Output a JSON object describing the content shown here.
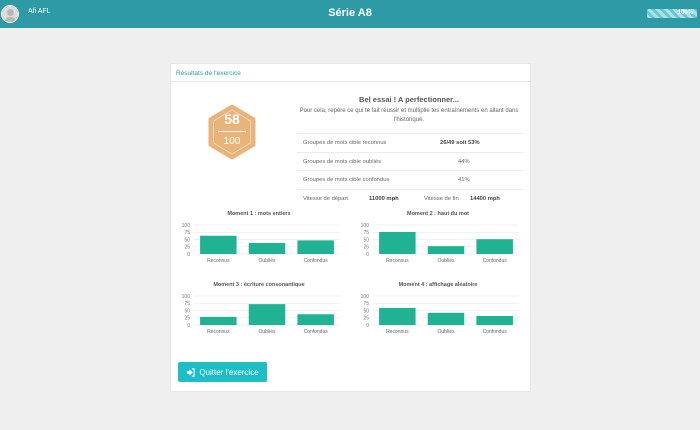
{
  "header": {
    "username": "Afi AFL",
    "title": "Série A8",
    "progress_text": "100%",
    "progress_value": 100
  },
  "card": {
    "title": "Résultats de l'exercice",
    "score": "58",
    "score_max": "100",
    "headline": "Bel essai ! A perfectionner...",
    "intro": "Pour cela, repère ce qui te fait réussir et multiplie tes entraînements en allant dans l'historique.",
    "stats": [
      {
        "label": "Groupes de mots cible reconnus",
        "value": "26/49 soit 53%"
      },
      {
        "label": "Groupes de mots cible oubliés",
        "value": "44%"
      },
      {
        "label": "Groupes de mots cible confondus",
        "value": "41%"
      }
    ],
    "speed": {
      "start_label": "Vitesse de départ",
      "start_value": "11000 mph",
      "end_label": "Vitesse de fin",
      "end_value": "14400 mph"
    },
    "quit_label": "Quitter l'exercice"
  },
  "colors": {
    "header": "#2d9aa5",
    "accent": "#1ebec7",
    "bar": "#1fb394",
    "badge": "#e8b47a"
  },
  "chart_data": [
    {
      "type": "bar",
      "title": "Moment 1 : mots entiers",
      "categories": [
        "Reconnus",
        "Oubliés",
        "Confondus"
      ],
      "values": [
        63,
        38,
        47
      ],
      "yticks": [
        0,
        25,
        50,
        75,
        100
      ],
      "ylim": [
        0,
        100
      ]
    },
    {
      "type": "bar",
      "title": "Moment 2 : haut du mot",
      "categories": [
        "Reconnus",
        "Oubliés",
        "Confondus"
      ],
      "values": [
        76,
        27,
        51
      ],
      "yticks": [
        0,
        25,
        50,
        75,
        100
      ],
      "ylim": [
        0,
        100
      ]
    },
    {
      "type": "bar",
      "title": "Moment 3 : écriture consonantique",
      "categories": [
        "Reconnus",
        "Oubliés",
        "Confondus"
      ],
      "values": [
        28,
        72,
        37
      ],
      "yticks": [
        0,
        25,
        50,
        75,
        100
      ],
      "ylim": [
        0,
        100
      ]
    },
    {
      "type": "bar",
      "title": "Moment 4 : affichage aléatoire",
      "categories": [
        "Reconnus",
        "Oubliés",
        "Confondus"
      ],
      "values": [
        59,
        42,
        31
      ],
      "yticks": [
        0,
        25,
        50,
        75,
        100
      ],
      "ylim": [
        0,
        100
      ]
    }
  ]
}
